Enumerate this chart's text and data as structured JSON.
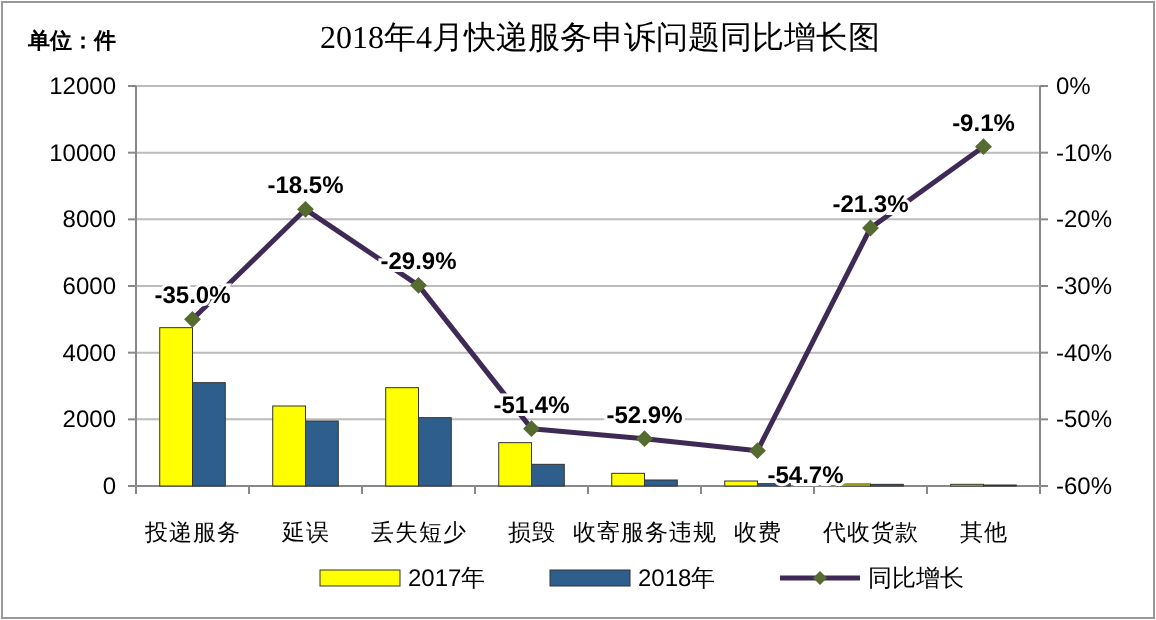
{
  "chart_data": {
    "type": "bar",
    "title": "2018年4月快递服务申诉问题同比增长图",
    "annotations": [
      "单位：件"
    ],
    "categories": [
      "投递服务",
      "延误",
      "丢失短少",
      "损毁",
      "收寄服务违规",
      "收费",
      "代收货款",
      "其他"
    ],
    "series": [
      {
        "name": "2017年",
        "color": "#ffff00",
        "values": [
          4750,
          2400,
          2950,
          1300,
          380,
          150,
          60,
          50
        ]
      },
      {
        "name": "2018年",
        "color": "#2e5f8c",
        "values": [
          3100,
          1950,
          2050,
          650,
          180,
          70,
          50,
          30
        ]
      },
      {
        "name": "同比增长",
        "type": "line",
        "axis": "y2",
        "color": "#3f2a56",
        "marker": "diamond",
        "values": [
          -35.0,
          -18.5,
          -29.9,
          -51.4,
          -52.9,
          -54.7,
          -21.3,
          -9.1
        ],
        "value_labels": [
          "-35.0%",
          "-18.5%",
          "-29.9%",
          "-51.4%",
          "-52.9%",
          "-54.7%",
          "-21.3%",
          "-9.1%"
        ]
      }
    ],
    "ylim": [
      0,
      12000
    ],
    "yticks": [
      0,
      2000,
      4000,
      6000,
      8000,
      10000,
      12000
    ],
    "y2lim": [
      -60,
      0
    ],
    "y2ticks": [
      {
        "value": -60,
        "label": "-60%"
      },
      {
        "value": -50,
        "label": "-50%"
      },
      {
        "value": -40,
        "label": "-40%"
      },
      {
        "value": -30,
        "label": "-30%"
      },
      {
        "value": -20,
        "label": "-20%"
      },
      {
        "value": -10,
        "label": "-10%"
      },
      {
        "value": 0,
        "label": "0%"
      }
    ],
    "grid": "y",
    "legend": "bottom"
  }
}
